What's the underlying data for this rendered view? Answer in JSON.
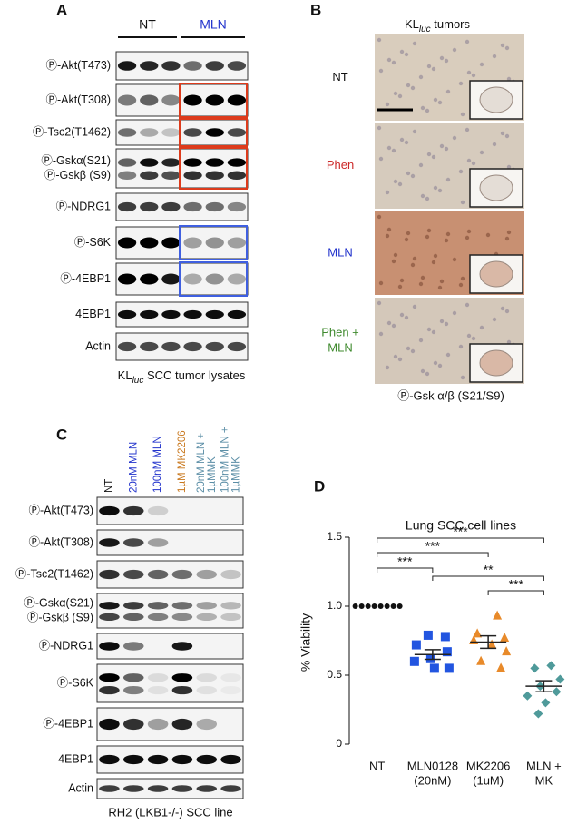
{
  "figure_panels": {
    "a": {
      "label": "A",
      "groups": [
        {
          "text": "NT",
          "color": "#111111"
        },
        {
          "text": "MLN",
          "color": "#2233cc"
        }
      ],
      "rows": [
        [
          "Ⓟ-Akt(T473)"
        ],
        [
          "Ⓟ-Akt(T308)"
        ],
        [
          "Ⓟ-Tsc2(T1462)"
        ],
        [
          "Ⓟ-Gskα(S21)",
          "Ⓟ-Gskβ (S9)"
        ],
        [
          "Ⓟ-NDRG1"
        ],
        [
          "Ⓟ-S6K"
        ],
        [
          "Ⓟ-4EBP1"
        ],
        [
          "4EBP1"
        ],
        [
          "Actin"
        ]
      ],
      "caption": [
        "KL",
        "luc",
        " SCC tumor lysates"
      ]
    },
    "b": {
      "label": "B",
      "title": [
        "KL",
        "luc",
        " tumors"
      ],
      "conditions": [
        {
          "lines": [
            "NT"
          ],
          "color": "#111111"
        },
        {
          "lines": [
            "Phen"
          ],
          "color": "#cc2a2a"
        },
        {
          "lines": [
            "MLN"
          ],
          "color": "#2233cc"
        },
        {
          "lines": [
            "Phen +",
            "MLN"
          ],
          "color": "#3f8a2e"
        }
      ],
      "caption": "Ⓟ-Gsk α/β (S21/S9)"
    },
    "c": {
      "label": "C",
      "lanes": [
        {
          "lines": [
            "NT"
          ],
          "color": "#111111"
        },
        {
          "lines": [
            "20nM MLN"
          ],
          "color": "#2233cc"
        },
        {
          "lines": [
            "100nM MLN"
          ],
          "color": "#2233cc"
        },
        {
          "lines": [
            "1µM MK2206"
          ],
          "color": "#c9781e"
        },
        {
          "lines": [
            "20nM MLN +",
            "1µMMK"
          ],
          "color": "#5b8ea6"
        },
        {
          "lines": [
            "100nM MLN +",
            "1µMMK"
          ],
          "color": "#5b8ea6"
        }
      ],
      "rows": [
        [
          "Ⓟ-Akt(T473)"
        ],
        [
          "Ⓟ-Akt(T308)"
        ],
        [
          "Ⓟ-Tsc2(T1462)"
        ],
        [
          "Ⓟ-Gskα(S21)",
          "Ⓟ-Gskβ (S9)"
        ],
        [
          "Ⓟ-NDRG1"
        ],
        [
          "Ⓟ-S6K"
        ],
        [
          "Ⓟ-4EBP1"
        ],
        [
          "4EBP1"
        ],
        [
          "Actin"
        ]
      ],
      "caption": "RH2 (LKB1-/-) SCC line"
    }
  },
  "chart_data": {
    "type": "dot",
    "panel_label": "D",
    "title": "Lung SCC cell lines",
    "y_label": "% Viability",
    "categories": [
      [
        "NT"
      ],
      [
        "MLN0128",
        "(20nM)"
      ],
      [
        "MK2206",
        "(1uM)"
      ],
      [
        "MLN +",
        "MK"
      ]
    ],
    "ylim": [
      0,
      1.5
    ],
    "yticks": [
      0,
      0.5,
      {
        "value": 1,
        "label": "1.0"
      },
      1.5
    ],
    "groups": [
      {
        "color": "#111111",
        "marker": "circle",
        "values": [
          1,
          1,
          1,
          1,
          1,
          1,
          1,
          1
        ]
      },
      {
        "color": "#2255e0",
        "marker": "square",
        "values": [
          0.79,
          0.78,
          0.72,
          0.67,
          0.62,
          0.6,
          0.55,
          0.55
        ],
        "mean": 0.65,
        "error": 0.035
      },
      {
        "color": "#e88a2a",
        "marker": "triangle",
        "values": [
          0.93,
          0.8,
          0.77,
          0.75,
          0.72,
          0.67,
          0.6,
          0.55
        ],
        "mean": 0.74,
        "error": 0.045
      },
      {
        "color": "#4f9a9a",
        "marker": "diamond",
        "values": [
          0.57,
          0.55,
          0.47,
          0.42,
          0.38,
          0.35,
          0.3,
          0.22
        ],
        "mean": 0.42,
        "error": 0.04
      }
    ],
    "significance": [
      {
        "label": "***",
        "from": 0,
        "to": 3
      },
      {
        "label": "***",
        "from": 0,
        "to": 2
      },
      {
        "label": "***",
        "from": 0,
        "to": 1
      },
      {
        "label": "**",
        "from": 1,
        "to": 3
      },
      {
        "label": "***",
        "from": 2,
        "to": 3
      }
    ]
  }
}
